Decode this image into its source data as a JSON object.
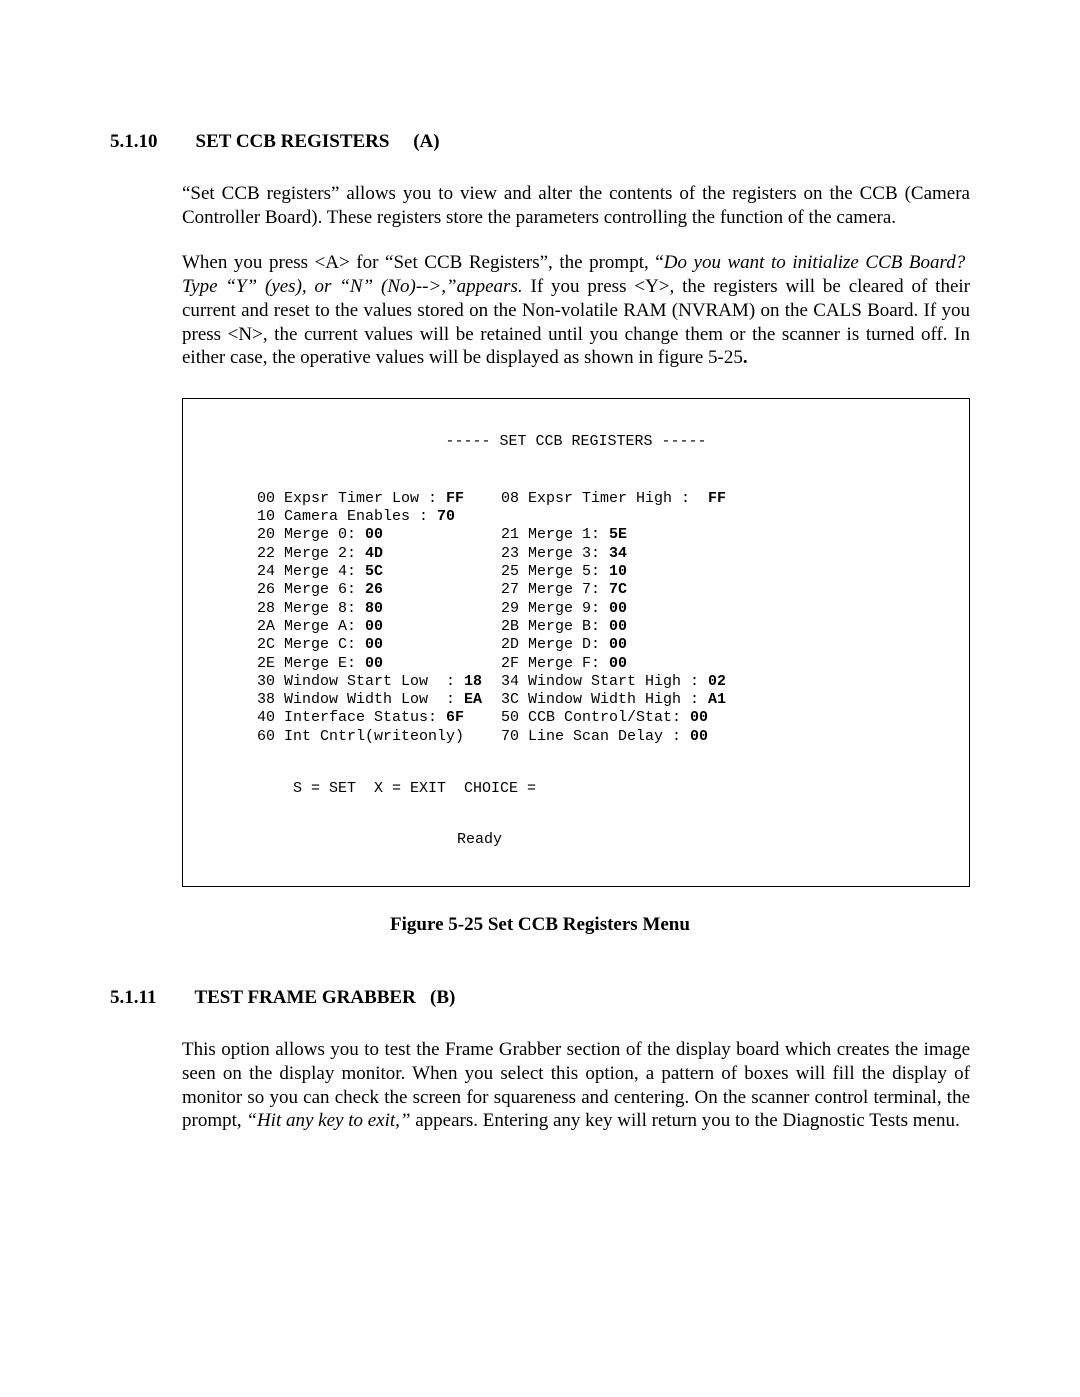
{
  "section1": {
    "num": "5.1.10",
    "title": "SET CCB REGISTERS     (A)"
  },
  "para1": "“Set CCB registers” allows you to view and alter the contents of the registers on the CCB (Camera Controller Board).  These registers store the parameters controlling the function of the camera.",
  "para2_a": "When you press <A> for “Set CCB Registers”, the prompt, “",
  "para2_italic": "Do you want to initialize CCB Board?  Type “Y”  (yes), or “N”  (No)-->,”appears.",
  "para2_b": "  If you press <Y>, the registers will be cleared of their current and reset to the values  stored on the Non-volatile RAM (NVRAM) on the CALS  Board.  If you press <N>, the current values will be retained until you change them or the scanner is turned off.  In either case, the operative values will be displayed as shown in figure 5-25",
  "para2_c": ".",
  "terminal": {
    "title": "----- SET CCB REGISTERS -----",
    "rows": [
      {
        "l_addr": "00",
        "l_label": " Expsr Timer Low : ",
        "l_val": "FF",
        "r_addr": "08",
        "r_label": " Expsr Timer High :  ",
        "r_val": "FF"
      },
      {
        "l_addr": "10",
        "l_label": " Camera Enables : ",
        "l_val": "70",
        "r_addr": "",
        "r_label": "",
        "r_val": ""
      },
      {
        "l_addr": "20",
        "l_label": " Merge 0: ",
        "l_val": "00",
        "r_addr": "21",
        "r_label": " Merge 1: ",
        "r_val": "5E"
      },
      {
        "l_addr": "22",
        "l_label": " Merge 2: ",
        "l_val": "4D",
        "r_addr": "23",
        "r_label": " Merge 3: ",
        "r_val": "34"
      },
      {
        "l_addr": "24",
        "l_label": " Merge 4: ",
        "l_val": "5C",
        "r_addr": "25",
        "r_label": " Merge 5: ",
        "r_val": "10"
      },
      {
        "l_addr": "26",
        "l_label": " Merge 6: ",
        "l_val": "26",
        "r_addr": "27",
        "r_label": " Merge 7: ",
        "r_val": "7C"
      },
      {
        "l_addr": "28",
        "l_label": " Merge 8: ",
        "l_val": "80",
        "r_addr": "29",
        "r_label": " Merge 9: ",
        "r_val": "00"
      },
      {
        "l_addr": "2A",
        "l_label": " Merge A: ",
        "l_val": "00",
        "r_addr": "2B",
        "r_label": " Merge B: ",
        "r_val": "00"
      },
      {
        "l_addr": "2C",
        "l_label": " Merge C: ",
        "l_val": "00",
        "r_addr": "2D",
        "r_label": " Merge D: ",
        "r_val": "00"
      },
      {
        "l_addr": "2E",
        "l_label": " Merge E: ",
        "l_val": "00",
        "r_addr": "2F",
        "r_label": " Merge F: ",
        "r_val": "00"
      },
      {
        "l_addr": "30",
        "l_label": " Window Start Low  : ",
        "l_val": "18",
        "r_addr": "34",
        "r_label": " Window Start High : ",
        "r_val": "02"
      },
      {
        "l_addr": "38",
        "l_label": " Window Width Low  : ",
        "l_val": "EA",
        "r_addr": "3C",
        "r_label": " Window Width High : ",
        "r_val": "A1"
      },
      {
        "l_addr": "40",
        "l_label": " Interface Status: ",
        "l_val": "6F",
        "r_addr": "50",
        "r_label": " CCB Control/Stat: ",
        "r_val": "00"
      },
      {
        "l_addr": "60",
        "l_label": " Int Cntrl(writeonly)",
        "l_val": "",
        "r_addr": "70",
        "r_label": " Line Scan Delay : ",
        "r_val": "00"
      }
    ],
    "choice": "S = SET  X = EXIT  CHOICE =",
    "ready": "Ready"
  },
  "figure_caption": "Figure 5-25  Set CCB Registers Menu",
  "section2": {
    "num": "5.1.11",
    "title": "TEST FRAME GRABBER   (B)"
  },
  "para3_a": "This option allows you to test the Frame Grabber section of the display board which creates the image seen on the display monitor.  When you select this option, a pattern of boxes will fill the display of monitor so you can check the screen for squareness and centering.  On the scanner control terminal, the prompt, ",
  "para3_italic": "“Hit any key to exit,” ",
  "para3_b": "appears.  Entering any key will return you to the Diagnostic Tests menu."
}
